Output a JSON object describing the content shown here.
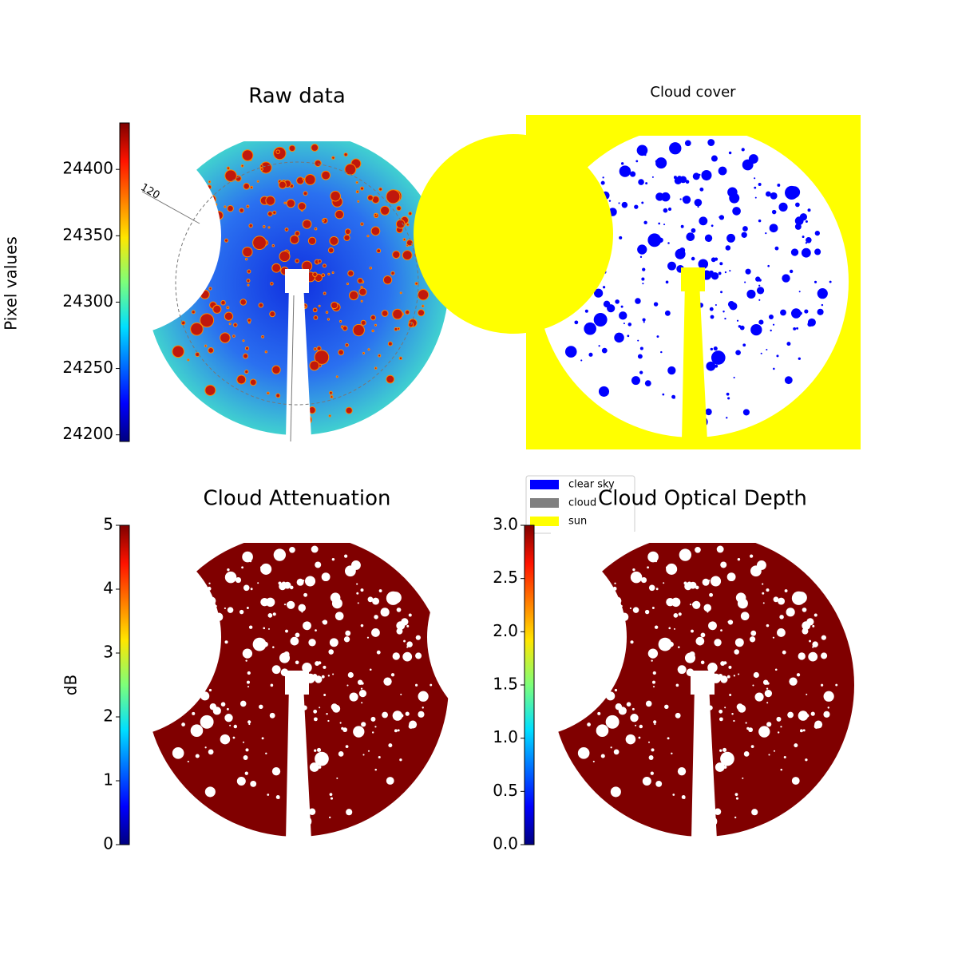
{
  "chart_data": [
    {
      "type": "image",
      "title": "Raw data",
      "colormap": "jet",
      "annotations": [
        "120"
      ],
      "colorbar": {
        "label": "Pixel values",
        "ylim": [
          24195,
          24435
        ],
        "yticks": [
          24200,
          24250,
          24300,
          24350,
          24400
        ]
      }
    },
    {
      "type": "image",
      "title": "Cloud cover",
      "background": "#ffff00",
      "legend": [
        {
          "name": "clear sky",
          "color": "#0000ff"
        },
        {
          "name": "cloud",
          "color": "#808080"
        },
        {
          "name": "sun",
          "color": "#ffff00"
        }
      ]
    },
    {
      "type": "image",
      "title": "Cloud Attenuation",
      "colormap": "jet",
      "colorbar": {
        "label": "dB",
        "ylim": [
          0,
          5
        ],
        "yticks": [
          0,
          1,
          2,
          3,
          4,
          5
        ]
      }
    },
    {
      "type": "image",
      "title": "Cloud Optical Depth",
      "colormap": "jet",
      "colorbar": {
        "ylim": [
          0,
          3
        ],
        "yticks": [
          {
            "value": 0,
            "label": "0.0"
          },
          {
            "value": 0.5,
            "label": "0.5"
          },
          {
            "value": 1,
            "label": "1.0"
          },
          {
            "value": 1.5,
            "label": "1.5"
          },
          {
            "value": 2,
            "label": "2.0"
          },
          {
            "value": 2.5,
            "label": "2.5"
          },
          {
            "value": 3,
            "label": "3.0"
          }
        ]
      }
    }
  ]
}
